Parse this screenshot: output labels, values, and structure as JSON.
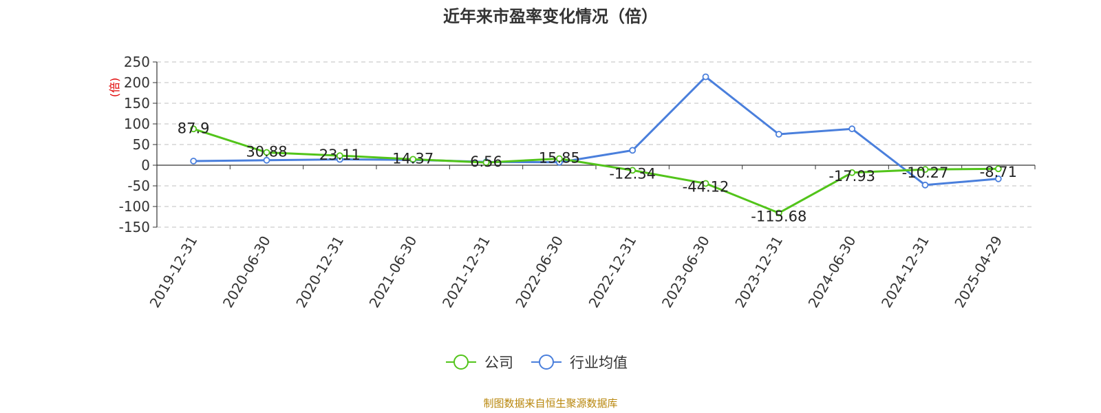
{
  "chart_data": {
    "type": "line",
    "title": "近年来市盈率变化情况（倍）",
    "ylabel": "(倍)",
    "ylim": [
      -150,
      250
    ],
    "yticks": [
      250,
      200,
      150,
      100,
      50,
      0,
      -50,
      -100,
      -150
    ],
    "categories": [
      "2019-12-31",
      "2020-06-30",
      "2020-12-31",
      "2021-06-30",
      "2021-12-31",
      "2022-06-30",
      "2022-12-31",
      "2023-06-30",
      "2023-12-31",
      "2024-06-30",
      "2024-12-31",
      "2025-04-29"
    ],
    "grid": true,
    "legend_position": "bottom",
    "series": [
      {
        "name": "公司",
        "color": "#52c41a",
        "values": [
          87.9,
          30.88,
          23.11,
          14.37,
          6.56,
          15.85,
          -12.34,
          -44.12,
          -115.68,
          -17.93,
          -10.27,
          -8.71
        ],
        "labels": [
          "87.9",
          "30.88",
          "23.11",
          "14.37",
          "6.56",
          "15.85",
          "-12.34",
          "-44.12",
          "-115.68",
          "-17.93",
          "-10.27",
          "-8.71"
        ]
      },
      {
        "name": "行业均值",
        "color": "#4a7fdc",
        "values": [
          10,
          12,
          14,
          13,
          8,
          7,
          36,
          214,
          75,
          88,
          -48,
          -33
        ]
      }
    ]
  },
  "source": "制图数据来自恒生聚源数据库"
}
